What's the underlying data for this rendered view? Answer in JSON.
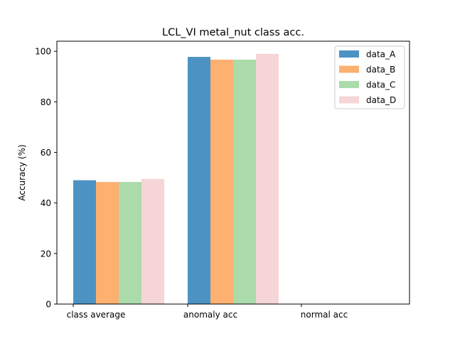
{
  "chart_data": {
    "type": "bar",
    "title": "LCL_VI metal_nut class acc.",
    "xlabel": "",
    "ylabel": "Accuracy (%)",
    "categories": [
      "class average",
      "anomaly acc",
      "normal acc"
    ],
    "ylim": [
      0,
      104
    ],
    "yticks": [
      0,
      20,
      40,
      60,
      80,
      100
    ],
    "grid": false,
    "legend_position": "top-right",
    "series": [
      {
        "name": "data_A",
        "color": "#4c93c4",
        "values": [
          49.0,
          97.8,
          0
        ]
      },
      {
        "name": "data_B",
        "color": "#fdb070",
        "values": [
          48.3,
          96.7,
          0
        ]
      },
      {
        "name": "data_C",
        "color": "#abdbab",
        "values": [
          48.3,
          96.7,
          0
        ]
      },
      {
        "name": "data_D",
        "color": "#f5d5d6",
        "values": [
          49.5,
          99.0,
          0
        ]
      }
    ]
  }
}
